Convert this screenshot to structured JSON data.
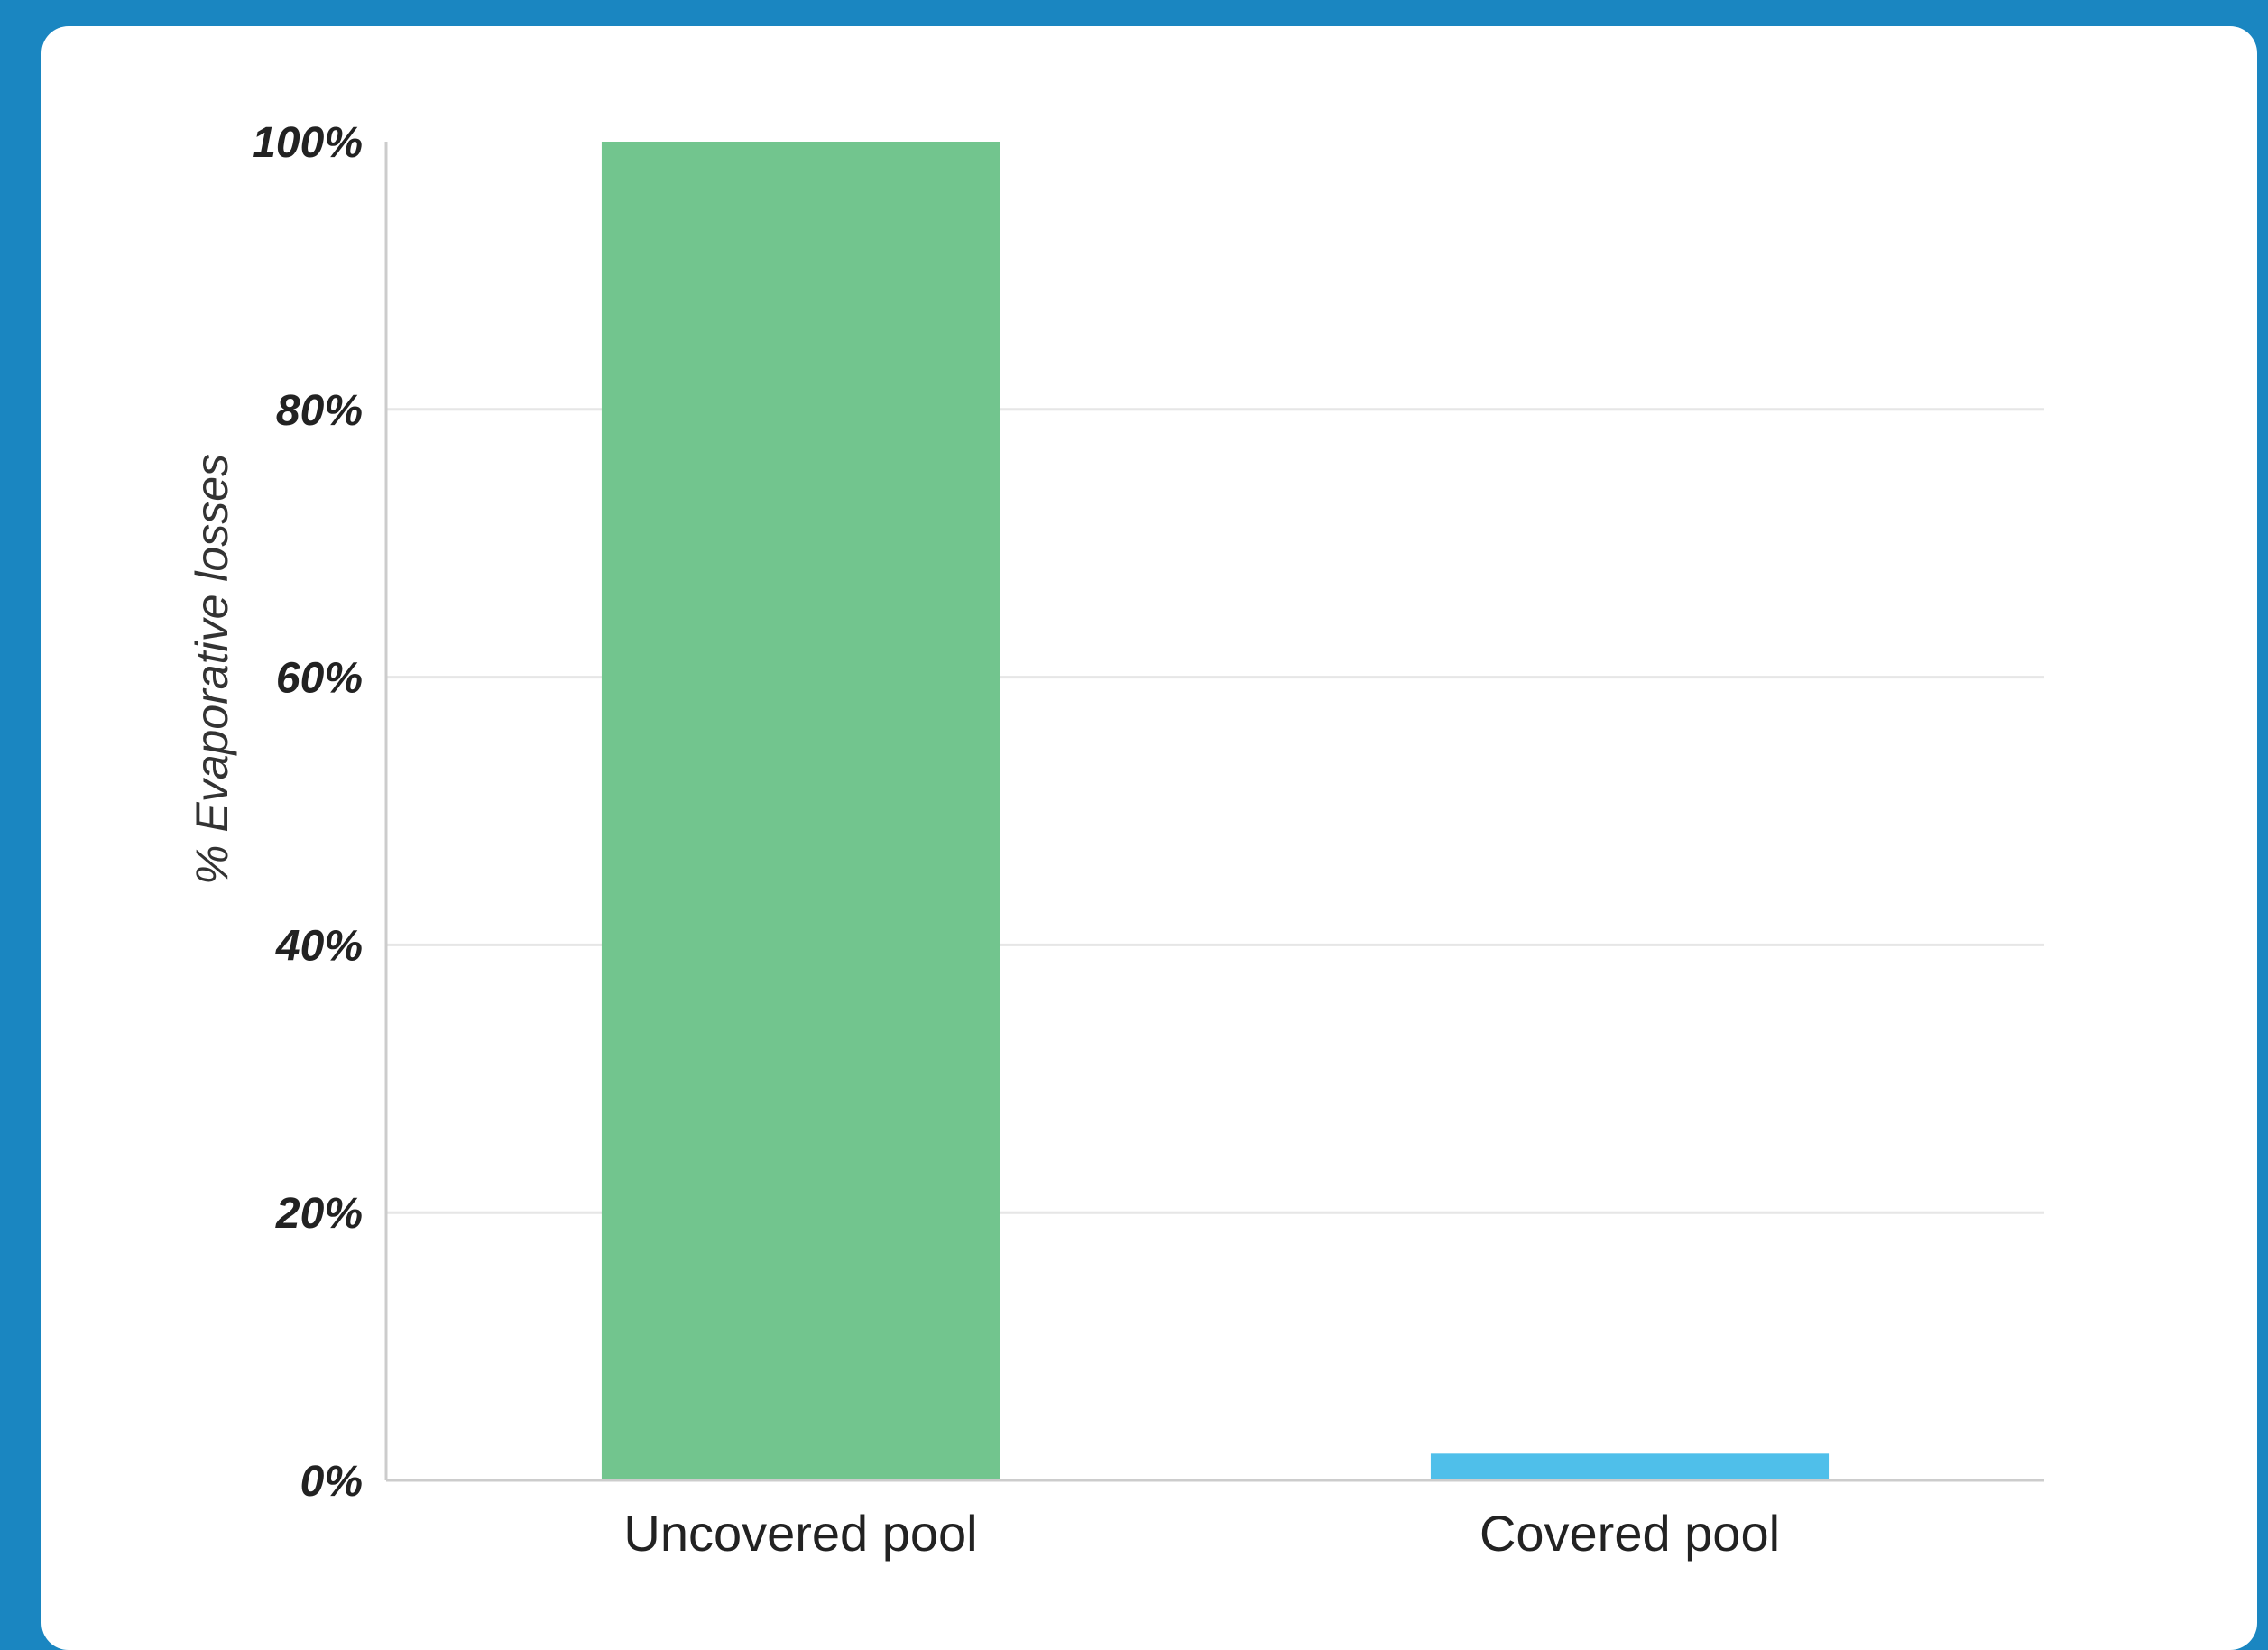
{
  "chart_data": {
    "type": "bar",
    "categories": [
      "Uncovered pool",
      "Covered pool"
    ],
    "values": [
      100,
      2
    ],
    "colors": [
      "#72c58e",
      "#4fbfea"
    ],
    "ylabel": "% Evaporative losses",
    "xlabel": "",
    "ylim": [
      0,
      100
    ],
    "yticks": [
      0,
      20,
      40,
      60,
      80,
      100
    ],
    "ytick_labels": [
      "0%",
      "20%",
      "40%",
      "60%",
      "80%",
      "100%"
    ],
    "grid": true,
    "legend": "none"
  },
  "colors": {
    "background": "#1a86c1",
    "card": "#ffffff",
    "gridline": "#e6e6e6",
    "axis": "#cccccc",
    "text": "#222222"
  }
}
